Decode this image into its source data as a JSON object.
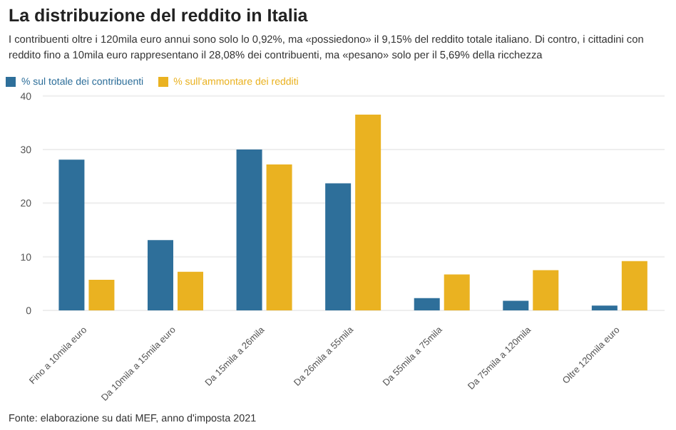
{
  "chart_data": {
    "type": "bar",
    "title": "La distribuzione del reddito in Italia",
    "subtitle": "I contribuenti oltre i 120mila euro annui sono solo lo 0,92%, ma «possiedono» il 9,15% del reddito totale italiano. Di contro, i cittadini con reddito fino a 10mila euro rappresentano il 28,08% dei contribuenti, ma «pesano» solo per il 5,69% della ricchezza",
    "categories": [
      "Fino a 10mila euro",
      "Da 10mila a 15mila euro",
      "Da 15mila a 26mila",
      "Da 26mila a 55mila",
      "Da 55mila a 75mila",
      "Da 75mila a 120mila",
      "Oltre 120mila euro"
    ],
    "series": [
      {
        "name": "% sul totale dei contribuenti",
        "color": "#2e6f9a",
        "values": [
          28.1,
          13.1,
          30.0,
          23.7,
          2.3,
          1.8,
          0.9
        ]
      },
      {
        "name": "% sull'ammontare dei redditi",
        "color": "#eab221",
        "values": [
          5.7,
          7.2,
          27.2,
          36.5,
          6.7,
          7.5,
          9.2
        ]
      }
    ],
    "ylim": [
      0,
      40
    ],
    "yticks": [
      0,
      10,
      20,
      30,
      40
    ],
    "grid": "y",
    "legend": "top left",
    "annotations": [
      "Fonte: elaborazione su dati MEF, anno d'imposta 2021"
    ]
  }
}
